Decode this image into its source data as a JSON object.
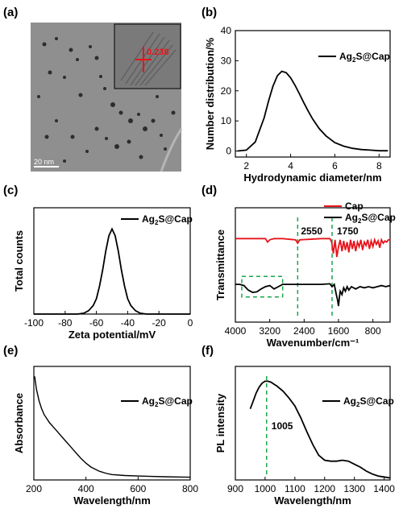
{
  "colors": {
    "black": "#000000",
    "red": "#e8141b",
    "green": "#1aa64a",
    "tem_bg": "#8f8f8f"
  },
  "panels": {
    "a": {
      "label": "(a)",
      "scale_bar": "20 nm",
      "inset_annotation": "0.238"
    }
  },
  "chart_data": [
    {
      "id": "b",
      "panel_label": "(b)",
      "type": "line",
      "title": "",
      "xlabel": "Hydrodynamic diameter/nm",
      "ylabel": "Number distribution/%",
      "xlim": [
        1.5,
        8.5
      ],
      "ylim": [
        -2,
        40
      ],
      "xticks": [
        2,
        4,
        6,
        8
      ],
      "yticks": [
        0,
        10,
        20,
        30,
        40
      ],
      "legend_position": "top-right",
      "series": [
        {
          "name": "Ag2S@Cap",
          "color": "#000000",
          "x": [
            1.6,
            2.0,
            2.4,
            2.8,
            3.0,
            3.2,
            3.4,
            3.6,
            3.8,
            4.0,
            4.2,
            4.4,
            4.6,
            4.8,
            5.0,
            5.3,
            5.6,
            6.0,
            6.4,
            6.8,
            7.2,
            7.6,
            8.0,
            8.4
          ],
          "y": [
            0.0,
            0.3,
            3.0,
            11.0,
            16.5,
            21.5,
            25.0,
            26.5,
            26.0,
            24.3,
            21.8,
            19.0,
            16.0,
            13.2,
            10.6,
            7.4,
            5.0,
            2.8,
            1.6,
            0.9,
            0.5,
            0.3,
            0.1,
            0.1
          ]
        }
      ]
    },
    {
      "id": "c",
      "panel_label": "(c)",
      "type": "line",
      "title": "",
      "xlabel": "Zeta potential/mV",
      "ylabel": "Total counts",
      "xlim": [
        -100,
        0
      ],
      "ylim": [
        0,
        1.25
      ],
      "xticks": [
        -100,
        -80,
        -60,
        -40,
        -20,
        0
      ],
      "yticks": [],
      "legend_position": "top-right",
      "series": [
        {
          "name": "Ag2S@Cap",
          "color": "#000000",
          "x": [
            -100,
            -80,
            -72,
            -68,
            -65,
            -62,
            -60,
            -58,
            -56,
            -54,
            -52,
            -50,
            -48,
            -46,
            -44,
            -42,
            -40,
            -38,
            -35,
            -32,
            -28,
            -20,
            0
          ],
          "y": [
            0.0,
            0.0,
            0.0,
            0.01,
            0.04,
            0.1,
            0.18,
            0.33,
            0.52,
            0.74,
            0.92,
            1.0,
            0.92,
            0.74,
            0.52,
            0.33,
            0.18,
            0.1,
            0.04,
            0.01,
            0.0,
            0.0,
            0.0
          ]
        }
      ]
    },
    {
      "id": "d",
      "panel_label": "(d)",
      "type": "line",
      "title": "",
      "xlabel": "Wavenumber/cm⁻¹",
      "ylabel": "Transmittance",
      "xlim": [
        4000,
        400
      ],
      "ylim": [
        0,
        1
      ],
      "xticks": [
        4000,
        3200,
        2400,
        1600,
        800
      ],
      "yticks": [],
      "legend_position": "top-right",
      "annotations": [
        {
          "text": "2550",
          "x": 2550,
          "type": "vline",
          "color": "#1aa64a"
        },
        {
          "text": "1750",
          "x": 1750,
          "type": "vline",
          "color": "#1aa64a"
        }
      ],
      "dashed_box": {
        "x": [
          3850,
          2900
        ],
        "y": [
          0.22,
          0.4
        ],
        "color": "#1aa64a"
      },
      "series": [
        {
          "name": "Cap",
          "color": "#e8141b",
          "x": [
            4000,
            3600,
            3300,
            3250,
            3200,
            3100,
            2900,
            2600,
            2550,
            2500,
            2000,
            1800,
            1760,
            1720,
            1680,
            1640,
            1600,
            1560,
            1520,
            1480,
            1440,
            1400,
            1360,
            1320,
            1280,
            1240,
            1200,
            1160,
            1120,
            1080,
            1040,
            1000,
            960,
            920,
            880,
            840,
            800,
            760,
            720,
            680,
            640,
            600,
            560,
            520,
            480,
            440,
            400
          ],
          "y": [
            0.73,
            0.73,
            0.73,
            0.7,
            0.72,
            0.73,
            0.73,
            0.72,
            0.69,
            0.72,
            0.73,
            0.73,
            0.7,
            0.6,
            0.72,
            0.57,
            0.66,
            0.72,
            0.62,
            0.71,
            0.63,
            0.7,
            0.61,
            0.72,
            0.64,
            0.71,
            0.62,
            0.7,
            0.66,
            0.72,
            0.63,
            0.7,
            0.67,
            0.72,
            0.64,
            0.71,
            0.66,
            0.72,
            0.68,
            0.71,
            0.65,
            0.72,
            0.69,
            0.71,
            0.7,
            0.72,
            0.72
          ]
        },
        {
          "name": "Ag2S@Cap",
          "color": "#000000",
          "x": [
            4000,
            3900,
            3800,
            3700,
            3600,
            3500,
            3400,
            3300,
            3200,
            3100,
            3000,
            2900,
            2700,
            2550,
            2400,
            2000,
            1800,
            1750,
            1700,
            1650,
            1620,
            1600,
            1580,
            1560,
            1520,
            1480,
            1440,
            1400,
            1360,
            1300,
            1200,
            1100,
            1000,
            900,
            800,
            700,
            600,
            500,
            400
          ],
          "y": [
            0.33,
            0.33,
            0.32,
            0.28,
            0.26,
            0.265,
            0.29,
            0.31,
            0.32,
            0.29,
            0.31,
            0.33,
            0.33,
            0.33,
            0.33,
            0.33,
            0.335,
            0.31,
            0.33,
            0.24,
            0.19,
            0.14,
            0.22,
            0.27,
            0.24,
            0.3,
            0.27,
            0.31,
            0.28,
            0.31,
            0.29,
            0.31,
            0.3,
            0.31,
            0.3,
            0.31,
            0.32,
            0.31,
            0.32
          ]
        }
      ]
    },
    {
      "id": "e",
      "panel_label": "(e)",
      "type": "line",
      "title": "",
      "xlabel": "Wavelength/nm",
      "ylabel": "Absorbance",
      "xlim": [
        200,
        800
      ],
      "ylim": [
        0,
        1.15
      ],
      "xticks": [
        200,
        400,
        600,
        800
      ],
      "yticks": [],
      "legend_position": "top-right",
      "series": [
        {
          "name": "Ag2S@Cap",
          "color": "#000000",
          "x": [
            203,
            210,
            220,
            230,
            240,
            250,
            260,
            280,
            300,
            320,
            340,
            360,
            380,
            400,
            420,
            450,
            480,
            500,
            550,
            600,
            650,
            700,
            750,
            800
          ],
          "y": [
            1.05,
            0.92,
            0.8,
            0.72,
            0.66,
            0.62,
            0.58,
            0.52,
            0.46,
            0.4,
            0.34,
            0.28,
            0.22,
            0.17,
            0.13,
            0.09,
            0.065,
            0.055,
            0.045,
            0.04,
            0.036,
            0.033,
            0.03,
            0.028
          ]
        }
      ]
    },
    {
      "id": "f",
      "panel_label": "(f)",
      "type": "line",
      "title": "",
      "xlabel": "Wavelength/nm",
      "ylabel": "PL  intensity",
      "xlim": [
        900,
        1420
      ],
      "ylim": [
        0,
        1.15
      ],
      "xticks": [
        900,
        1000,
        1100,
        1200,
        1300,
        1400
      ],
      "yticks": [],
      "legend_position": "top-right",
      "annotations": [
        {
          "text": "1005",
          "x": 1005,
          "type": "vline",
          "color": "#1aa64a"
        }
      ],
      "series": [
        {
          "name": "Ag2S@Cap",
          "color": "#000000",
          "x": [
            950,
            960,
            970,
            980,
            990,
            1000,
            1010,
            1020,
            1030,
            1040,
            1060,
            1080,
            1100,
            1120,
            1140,
            1160,
            1180,
            1200,
            1220,
            1240,
            1260,
            1280,
            1300,
            1320,
            1340,
            1360,
            1380,
            1400,
            1420
          ],
          "y": [
            0.72,
            0.8,
            0.88,
            0.94,
            0.98,
            1.0,
            1.0,
            0.99,
            0.97,
            0.95,
            0.9,
            0.83,
            0.75,
            0.63,
            0.49,
            0.36,
            0.25,
            0.2,
            0.19,
            0.19,
            0.2,
            0.19,
            0.16,
            0.13,
            0.09,
            0.06,
            0.04,
            0.03,
            0.02
          ]
        }
      ]
    }
  ]
}
